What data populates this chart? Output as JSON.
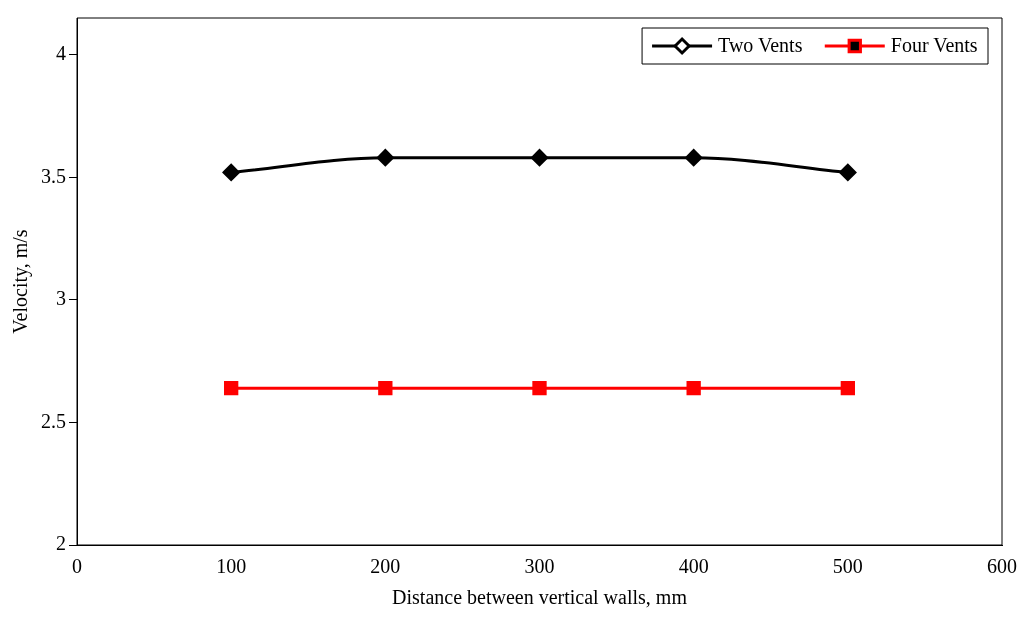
{
  "chart_data": {
    "type": "line",
    "xlabel": "Distance between vertical walls, mm",
    "ylabel": "Velocity, m/s",
    "x": [
      100,
      200,
      300,
      400,
      500
    ],
    "series": [
      {
        "name": "Two Vents",
        "color": "#000000",
        "marker": "diamond",
        "values": [
          3.52,
          3.58,
          3.58,
          3.58,
          3.52
        ]
      },
      {
        "name": "Four Vents",
        "color": "#ff0000",
        "marker": "square",
        "values": [
          2.64,
          2.64,
          2.64,
          2.64,
          2.64
        ]
      }
    ],
    "xlim": [
      0,
      600
    ],
    "xticks": [
      0,
      100,
      200,
      300,
      400,
      500,
      600
    ],
    "ylim": [
      2,
      4.15
    ],
    "yticks": [
      2,
      2.5,
      3,
      3.5,
      4
    ],
    "grid": false,
    "legend": "top right"
  }
}
